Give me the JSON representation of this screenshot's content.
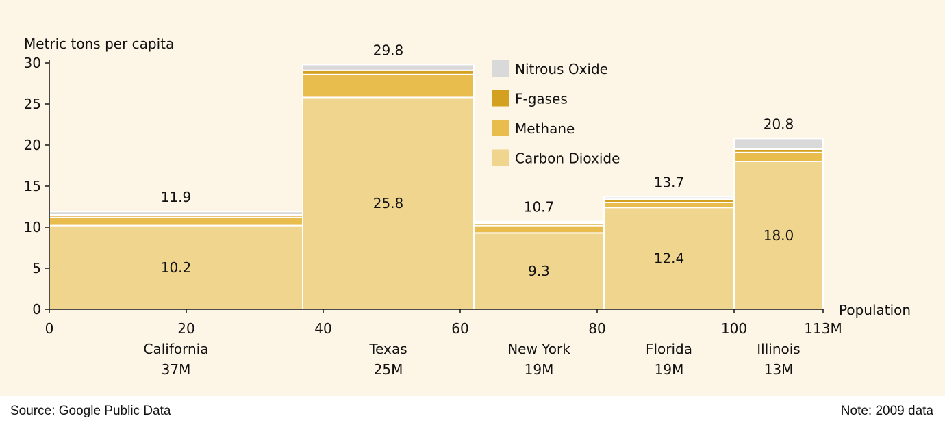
{
  "chart_data": {
    "type": "bar",
    "subtype": "variable-width stacked bar (marimekko)",
    "ylabel": "Metric tons per capita",
    "xlabel": "Population",
    "ylim": [
      0,
      30
    ],
    "yticks": [
      "0",
      "5",
      "10",
      "15",
      "20",
      "25",
      "30"
    ],
    "xlim": [
      0,
      113
    ],
    "xticks": [
      "0",
      "20",
      "40",
      "60",
      "80",
      "100",
      "113M"
    ],
    "grid": false,
    "legend_position": "top-center",
    "legend": [
      {
        "name": "Nitrous Oxide",
        "color": "#d9d9d9"
      },
      {
        "name": "F-gases",
        "color": "#d3a020"
      },
      {
        "name": "Methane",
        "color": "#e8bd4e"
      },
      {
        "name": "Carbon Dioxide",
        "color": "#f0d58e"
      }
    ],
    "categories": [
      {
        "name": "California",
        "population_label": "37M",
        "population": 37,
        "total_label": "11.9",
        "co2_label": "10.2",
        "values": {
          "Carbon Dioxide": 10.2,
          "Methane": 1.0,
          "F-gases": 0.3,
          "Nitrous Oxide": 0.4
        }
      },
      {
        "name": "Texas",
        "population_label": "25M",
        "population": 25,
        "total_label": "29.8",
        "co2_label": "25.8",
        "values": {
          "Carbon Dioxide": 25.8,
          "Methane": 2.8,
          "F-gases": 0.5,
          "Nitrous Oxide": 0.7
        }
      },
      {
        "name": "New York",
        "population_label": "19M",
        "population": 19,
        "total_label": "10.7",
        "co2_label": "9.3",
        "values": {
          "Carbon Dioxide": 9.3,
          "Methane": 0.9,
          "F-gases": 0.3,
          "Nitrous Oxide": 0.2
        }
      },
      {
        "name": "Florida",
        "population_label": "19M",
        "population": 19,
        "total_label": "13.7",
        "co2_label": "12.4",
        "values": {
          "Carbon Dioxide": 12.4,
          "Methane": 0.6,
          "F-gases": 0.4,
          "Nitrous Oxide": 0.3
        }
      },
      {
        "name": "Illinois",
        "population_label": "13M",
        "population": 13,
        "total_label": "20.8",
        "co2_label": "18.0",
        "values": {
          "Carbon Dioxide": 18.0,
          "Methane": 1.1,
          "F-gases": 0.4,
          "Nitrous Oxide": 1.3
        }
      }
    ]
  },
  "footer": {
    "source": "Source: Google Public Data",
    "note": "Note: 2009 data"
  }
}
